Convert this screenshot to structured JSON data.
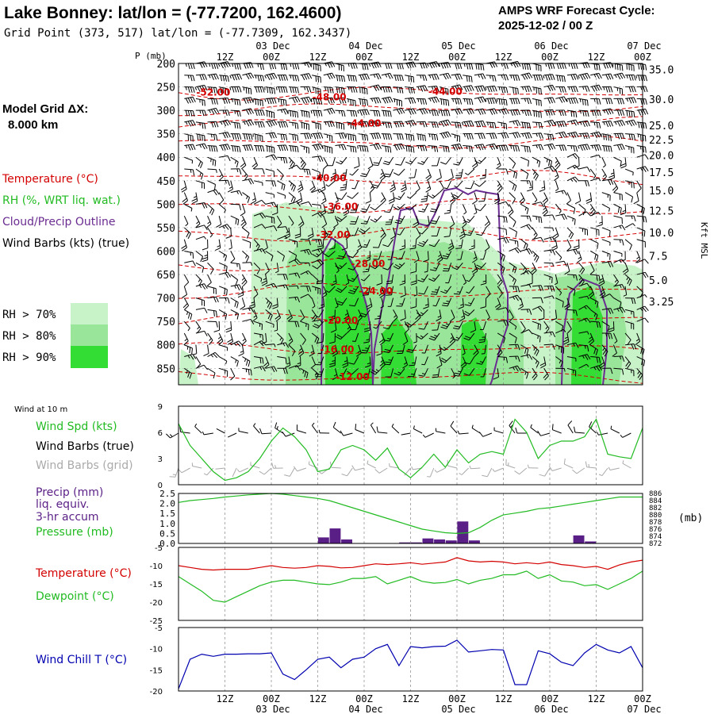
{
  "chart_data": {
    "type": "meteogram",
    "header": {
      "title": "Lake Bonney:  lat/lon = (-77.7200, 162.4600)",
      "subtitle": "Grid Point (373, 517) lat/lon = (-77.7309, 162.3437)",
      "cycle_line1": "AMPS WRF Forecast Cycle:",
      "cycle_line2": "2025-12-02 / 00  Z"
    },
    "model_grid": {
      "line1": "Model Grid ΔX:",
      "line2": "8.000 km"
    },
    "colors": {
      "temperature": "#d40000",
      "rh": "#22bb22",
      "cloud": "#6a2c91",
      "wind": "#000000",
      "wind_grid": "#aaaaaa",
      "precip": "#5a1f86",
      "pressure": "#22bb22",
      "dewpoint": "#22bb22",
      "wind_chill": "#0000b0",
      "rh70": "#c8f3c8",
      "rh80": "#99e599",
      "rh90": "#33dd33"
    },
    "time_axis": {
      "start_hour": 0,
      "end_hour": 120,
      "tick_labels": [
        "12Z",
        "00Z",
        "12Z",
        "00Z",
        "12Z",
        "00Z",
        "12Z",
        "00Z",
        "12Z",
        "00Z"
      ],
      "tick_hours": [
        12,
        24,
        36,
        48,
        60,
        72,
        84,
        96,
        108,
        120
      ],
      "date_labels": [
        "03 Dec",
        "04 Dec",
        "05 Dec",
        "06 Dec",
        "07 Dec"
      ],
      "date_hours": [
        24,
        48,
        72,
        96,
        120
      ]
    },
    "profile": {
      "p_label": "P (mb)",
      "pressure_ticks": [
        200,
        250,
        300,
        350,
        400,
        450,
        500,
        550,
        600,
        650,
        700,
        750,
        800,
        850
      ],
      "p_range": [
        200,
        885
      ],
      "height_ticks": [
        {
          "p": 213,
          "label": "35.0"
        },
        {
          "p": 276,
          "label": "30.0"
        },
        {
          "p": 332,
          "label": "25.0"
        },
        {
          "p": 362,
          "label": "22.5"
        },
        {
          "p": 395,
          "label": "20.0"
        },
        {
          "p": 432,
          "label": "17.5"
        },
        {
          "p": 471,
          "label": "15.0"
        },
        {
          "p": 514,
          "label": "12.5"
        },
        {
          "p": 560,
          "label": "10.0"
        },
        {
          "p": 610,
          "label": "7.5"
        },
        {
          "p": 662,
          "label": "5.0"
        },
        {
          "p": 707,
          "label": "3.25"
        }
      ],
      "height_axis_label": "Kft MSL",
      "legend": {
        "temperature": "Temperature (°C)",
        "rh": "RH (%, WRT liq. wat.)",
        "cloud": "Cloud/Precip Outline",
        "wind": "Wind Barbs (kts) (true)",
        "rh70": "RH > 70%",
        "rh80": "RH > 80%",
        "rh90": "RH > 90%"
      },
      "temperature_labels": [
        {
          "text": "-52.00",
          "hour": 9,
          "p": 262
        },
        {
          "text": "-48.00",
          "hour": 39,
          "p": 272
        },
        {
          "text": "-44.00",
          "hour": 69,
          "p": 260
        },
        {
          "text": "-44.00",
          "hour": 48,
          "p": 328
        },
        {
          "text": "-40.00",
          "hour": 39,
          "p": 444
        },
        {
          "text": "-36.00",
          "hour": 42,
          "p": 505
        },
        {
          "text": "-32.00",
          "hour": 40,
          "p": 565
        },
        {
          "text": "-28.00",
          "hour": 49,
          "p": 627
        },
        {
          "text": "-24.00",
          "hour": 51,
          "p": 685
        },
        {
          "text": "-20.00",
          "hour": 42,
          "p": 748
        },
        {
          "text": "-16.00",
          "hour": 41,
          "p": 810
        },
        {
          "text": "-12.00",
          "hour": 45,
          "p": 868
        }
      ]
    },
    "wind10": {
      "title": "Wind at 10 m",
      "spd_label": "Wind Spd (kts)",
      "barb_label": "Wind Barbs (true)",
      "barb_grid_label": "Wind Barbs (grid)",
      "y_ticks": [
        0,
        3,
        6,
        9
      ],
      "ylim": [
        0,
        9
      ],
      "hours": [
        0,
        3,
        6,
        9,
        12,
        15,
        18,
        21,
        24,
        27,
        30,
        33,
        36,
        39,
        42,
        45,
        48,
        51,
        54,
        57,
        60,
        63,
        66,
        69,
        72,
        75,
        78,
        81,
        84,
        87,
        90,
        93,
        96,
        99,
        102,
        105,
        108,
        111,
        114,
        117,
        120
      ],
      "speed": [
        7.0,
        4.5,
        3.0,
        1.5,
        0.5,
        0.8,
        1.5,
        3.0,
        5.0,
        6.5,
        5.5,
        4.0,
        1.5,
        1.8,
        4.0,
        4.5,
        4.0,
        2.8,
        4.2,
        1.8,
        0.8,
        2.0,
        3.5,
        2.0,
        4.0,
        2.5,
        3.5,
        3.8,
        3.5,
        7.5,
        6.0,
        3.0,
        4.5,
        5.0,
        5.0,
        5.5,
        7.5,
        3.5,
        3.2,
        3.0,
        6.5
      ]
    },
    "precip": {
      "precip_label": "Precip (mm)",
      "liq_label": "liq. equiv.",
      "accum_label": "3-hr accum",
      "pressure_label": "Pressure (mb)",
      "unit_label": "(mb)",
      "y_ticks": [
        0.0,
        0.5,
        1.0,
        1.5,
        2.0,
        2.5
      ],
      "y_tick_labels": [
        "0.0",
        "0.5",
        "1.0",
        "1.5",
        "2.0",
        "2.5"
      ],
      "ylim": [
        0,
        2.5
      ],
      "p_ticks": [
        872,
        874,
        876,
        878,
        880,
        882,
        884,
        886
      ],
      "p_range": [
        872,
        886
      ],
      "bars": [
        {
          "hour": 37.5,
          "value": 0.3
        },
        {
          "hour": 40.5,
          "value": 0.75
        },
        {
          "hour": 43.5,
          "value": 0.2
        },
        {
          "hour": 58.5,
          "value": 0.05
        },
        {
          "hour": 61.5,
          "value": 0.05
        },
        {
          "hour": 64.5,
          "value": 0.25
        },
        {
          "hour": 67.5,
          "value": 0.2
        },
        {
          "hour": 70.5,
          "value": 0.15
        },
        {
          "hour": 73.5,
          "value": 1.1
        },
        {
          "hour": 76.5,
          "value": 0.15
        },
        {
          "hour": 103.5,
          "value": 0.4
        },
        {
          "hour": 106.5,
          "value": 0.1
        }
      ],
      "pressure_series": [
        883.5,
        884,
        884.3,
        884.6,
        885,
        885.3,
        885.6,
        885.8,
        886,
        885.8,
        885.4,
        885,
        884.6,
        884,
        883,
        882,
        881,
        880,
        879,
        878,
        877,
        876,
        875.5,
        875,
        874.8,
        875,
        876.5,
        878.5,
        880,
        880.5,
        881,
        881.7,
        882,
        882.5,
        883,
        883.5,
        884,
        884.5,
        885,
        885,
        885
      ]
    },
    "tempdew": {
      "temp_label": "Temperature (°C)",
      "dew_label": "Dewpoint (°C)",
      "y_ticks": [
        -5,
        -10,
        -15,
        -20,
        -25
      ],
      "ylim": [
        -25,
        -5
      ],
      "temperature": [
        -10,
        -10.5,
        -11,
        -11.2,
        -11,
        -11,
        -11,
        -10.5,
        -10,
        -10.5,
        -10.7,
        -10.5,
        -10,
        -10.2,
        -10.6,
        -10.5,
        -10,
        -9.5,
        -9.7,
        -9.5,
        -9.2,
        -9.6,
        -9.3,
        -9,
        -7.8,
        -8.7,
        -9,
        -8.8,
        -9,
        -9.5,
        -9.2,
        -9.5,
        -9,
        -9.7,
        -10,
        -10.5,
        -10.2,
        -11,
        -9.8,
        -9,
        -8.5
      ],
      "dewpoint": [
        -13,
        -15,
        -17,
        -19.5,
        -20,
        -18.5,
        -17,
        -15.5,
        -14.5,
        -14,
        -14,
        -14.5,
        -15,
        -15.2,
        -14.5,
        -13.5,
        -13.5,
        -13,
        -15,
        -14,
        -13,
        -14.3,
        -14.8,
        -14.6,
        -13.8,
        -15,
        -14,
        -13.5,
        -12.5,
        -12.5,
        -11.5,
        -13.5,
        -12.5,
        -14.2,
        -14.5,
        -15.5,
        -15.2,
        -16.5,
        -15,
        -13.5,
        -11.5
      ]
    },
    "windchill": {
      "label": "Wind Chill T (°C)",
      "y_ticks": [
        -5,
        -10,
        -15,
        -20
      ],
      "ylim": [
        -20,
        -5
      ],
      "values": [
        -19.5,
        -12.5,
        -11.3,
        -11.8,
        -11.3,
        -11.3,
        -11.2,
        -11.2,
        -11,
        -16,
        -17.3,
        -15,
        -12.5,
        -12,
        -14.5,
        -12.5,
        -12,
        -10,
        -9,
        -14,
        -9.5,
        -9.8,
        -9.5,
        -9.4,
        -8,
        -10.8,
        -10.5,
        -10.2,
        -10.3,
        -18.5,
        -18.5,
        -10.5,
        -11.2,
        -13.2,
        -14,
        -11,
        -9,
        -10.3,
        -11,
        -9.5,
        -14.5
      ]
    }
  }
}
